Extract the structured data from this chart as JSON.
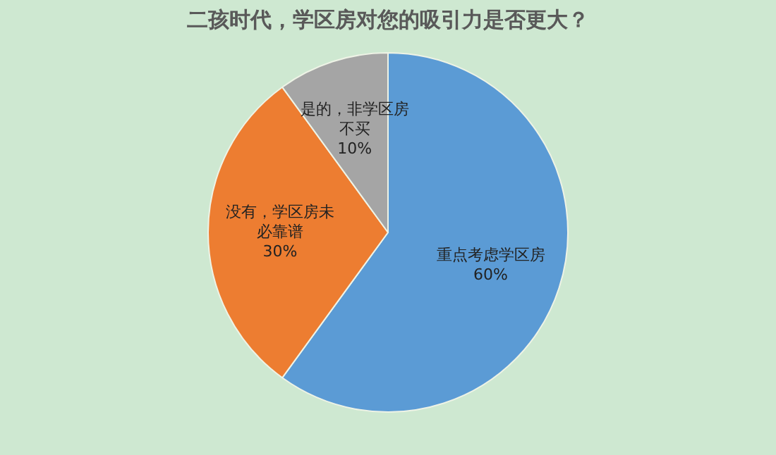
{
  "chart_data": {
    "type": "pie",
    "title": "二孩时代，学区房对您的吸引力是否更大？",
    "categories": [
      "重点考虑学区房",
      "没有，学区房未必靠谱",
      "是的，非学区房不买"
    ],
    "values": [
      60,
      30,
      10
    ],
    "colors": [
      "#5b9bd5",
      "#ed7d31",
      "#a5a5a5"
    ],
    "value_labels": [
      "60%",
      "30%",
      "10%"
    ],
    "legend": false
  }
}
